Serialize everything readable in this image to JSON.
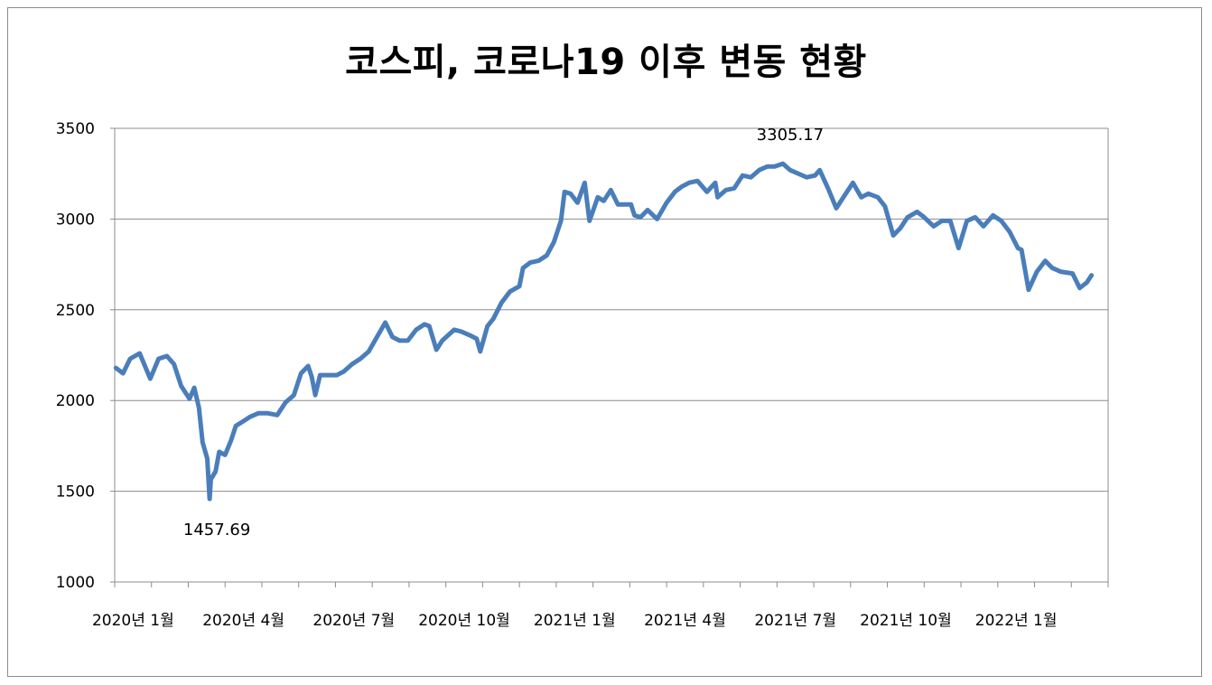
{
  "chart_data": {
    "type": "line",
    "title": "코스피, 코로나19 이후 변동 현황",
    "xlabel": "",
    "ylabel": "",
    "ylim": [
      1000,
      3500
    ],
    "yticks": [
      "1000",
      "1500",
      "2000",
      "2500",
      "3000",
      "3500"
    ],
    "xtick_labels": [
      "2020년 1월",
      "2020년 4월",
      "2020년 7월",
      "2020년 10월",
      "2021년 1월",
      "2021년 4월",
      "2021년 7월",
      "2021년 10월",
      "2022년 1월"
    ],
    "x_range": [
      "2020-01",
      "2022-03"
    ],
    "grid": true,
    "line_color": "#4a7ebb",
    "series": [
      {
        "values": [
          [
            "2020-01-02",
            2180
          ],
          [
            "2020-01-08",
            2150
          ],
          [
            "2020-01-14",
            2230
          ],
          [
            "2020-01-22",
            2260
          ],
          [
            "2020-01-31",
            2120
          ],
          [
            "2020-02-07",
            2230
          ],
          [
            "2020-02-14",
            2245
          ],
          [
            "2020-02-20",
            2200
          ],
          [
            "2020-02-26",
            2080
          ],
          [
            "2020-03-02",
            2010
          ],
          [
            "2020-03-06",
            2070
          ],
          [
            "2020-03-10",
            1960
          ],
          [
            "2020-03-13",
            1770
          ],
          [
            "2020-03-17",
            1680
          ],
          [
            "2020-03-19",
            1457.69
          ],
          [
            "2020-03-20",
            1566
          ],
          [
            "2020-03-24",
            1609
          ],
          [
            "2020-03-27",
            1717
          ],
          [
            "2020-04-01",
            1700
          ],
          [
            "2020-04-06",
            1780
          ],
          [
            "2020-04-10",
            1860
          ],
          [
            "2020-04-15",
            1880
          ],
          [
            "2020-04-22",
            1910
          ],
          [
            "2020-04-29",
            1930
          ],
          [
            "2020-05-06",
            1930
          ],
          [
            "2020-05-14",
            1920
          ],
          [
            "2020-05-21",
            1990
          ],
          [
            "2020-05-28",
            2030
          ],
          [
            "2020-06-03",
            2150
          ],
          [
            "2020-06-09",
            2190
          ],
          [
            "2020-06-12",
            2130
          ],
          [
            "2020-06-15",
            2030
          ],
          [
            "2020-06-19",
            2140
          ],
          [
            "2020-06-26",
            2140
          ],
          [
            "2020-07-02",
            2140
          ],
          [
            "2020-07-08",
            2160
          ],
          [
            "2020-07-15",
            2200
          ],
          [
            "2020-07-22",
            2230
          ],
          [
            "2020-07-29",
            2270
          ],
          [
            "2020-08-05",
            2350
          ],
          [
            "2020-08-12",
            2430
          ],
          [
            "2020-08-18",
            2350
          ],
          [
            "2020-08-24",
            2330
          ],
          [
            "2020-08-31",
            2330
          ],
          [
            "2020-09-07",
            2390
          ],
          [
            "2020-09-14",
            2420
          ],
          [
            "2020-09-18",
            2410
          ],
          [
            "2020-09-24",
            2280
          ],
          [
            "2020-09-29",
            2330
          ],
          [
            "2020-10-08",
            2390
          ],
          [
            "2020-10-14",
            2380
          ],
          [
            "2020-10-21",
            2360
          ],
          [
            "2020-10-27",
            2340
          ],
          [
            "2020-10-30",
            2270
          ],
          [
            "2020-11-05",
            2410
          ],
          [
            "2020-11-10",
            2450
          ],
          [
            "2020-11-17",
            2540
          ],
          [
            "2020-11-24",
            2600
          ],
          [
            "2020-12-01",
            2630
          ],
          [
            "2020-12-04",
            2730
          ],
          [
            "2020-12-10",
            2760
          ],
          [
            "2020-12-17",
            2770
          ],
          [
            "2020-12-24",
            2800
          ],
          [
            "2020-12-30",
            2873
          ],
          [
            "2021-01-05",
            2990
          ],
          [
            "2021-01-08",
            3150
          ],
          [
            "2021-01-13",
            3140
          ],
          [
            "2021-01-19",
            3090
          ],
          [
            "2021-01-25",
            3200
          ],
          [
            "2021-01-29",
            2990
          ],
          [
            "2021-02-05",
            3120
          ],
          [
            "2021-02-10",
            3100
          ],
          [
            "2021-02-16",
            3160
          ],
          [
            "2021-02-22",
            3080
          ],
          [
            "2021-03-02",
            3080
          ],
          [
            "2021-03-05",
            3020
          ],
          [
            "2021-03-10",
            3010
          ],
          [
            "2021-03-16",
            3050
          ],
          [
            "2021-03-24",
            3000
          ],
          [
            "2021-04-01",
            3090
          ],
          [
            "2021-04-08",
            3150
          ],
          [
            "2021-04-14",
            3180
          ],
          [
            "2021-04-20",
            3200
          ],
          [
            "2021-04-27",
            3210
          ],
          [
            "2021-05-04",
            3150
          ],
          [
            "2021-05-11",
            3200
          ],
          [
            "2021-05-13",
            3120
          ],
          [
            "2021-05-20",
            3160
          ],
          [
            "2021-05-27",
            3170
          ],
          [
            "2021-06-03",
            3240
          ],
          [
            "2021-06-10",
            3230
          ],
          [
            "2021-06-17",
            3270
          ],
          [
            "2021-06-24",
            3290
          ],
          [
            "2021-06-30",
            3290
          ],
          [
            "2021-07-06",
            3305.17
          ],
          [
            "2021-07-12",
            3270
          ],
          [
            "2021-07-19",
            3250
          ],
          [
            "2021-07-26",
            3230
          ],
          [
            "2021-08-02",
            3240
          ],
          [
            "2021-08-06",
            3270
          ],
          [
            "2021-08-13",
            3170
          ],
          [
            "2021-08-20",
            3060
          ],
          [
            "2021-08-27",
            3130
          ],
          [
            "2021-09-03",
            3200
          ],
          [
            "2021-09-10",
            3120
          ],
          [
            "2021-09-16",
            3140
          ],
          [
            "2021-09-24",
            3120
          ],
          [
            "2021-09-30",
            3070
          ],
          [
            "2021-10-06",
            2910
          ],
          [
            "2021-10-12",
            2950
          ],
          [
            "2021-10-18",
            3010
          ],
          [
            "2021-10-26",
            3040
          ],
          [
            "2021-11-01",
            3010
          ],
          [
            "2021-11-09",
            2960
          ],
          [
            "2021-11-16",
            2990
          ],
          [
            "2021-11-23",
            2990
          ],
          [
            "2021-11-30",
            2840
          ],
          [
            "2021-12-06",
            2990
          ],
          [
            "2021-12-13",
            3010
          ],
          [
            "2021-12-20",
            2960
          ],
          [
            "2021-12-28",
            3020
          ],
          [
            "2022-01-04",
            2990
          ],
          [
            "2022-01-11",
            2930
          ],
          [
            "2022-01-18",
            2840
          ],
          [
            "2022-01-21",
            2830
          ],
          [
            "2022-01-27",
            2610
          ],
          [
            "2022-02-03",
            2710
          ],
          [
            "2022-02-10",
            2770
          ],
          [
            "2022-02-16",
            2730
          ],
          [
            "2022-02-23",
            2710
          ],
          [
            "2022-03-02",
            2700
          ],
          [
            "2022-03-08",
            2620
          ],
          [
            "2022-03-14",
            2650
          ],
          [
            "2022-03-18",
            2690
          ]
        ]
      }
    ],
    "annotations": [
      {
        "text": "1457.69",
        "x": "2020-03-19",
        "y": 1457.69,
        "position": "below"
      },
      {
        "text": "3305.17",
        "x": "2021-07-06",
        "y": 3305.17,
        "position": "above"
      }
    ]
  }
}
